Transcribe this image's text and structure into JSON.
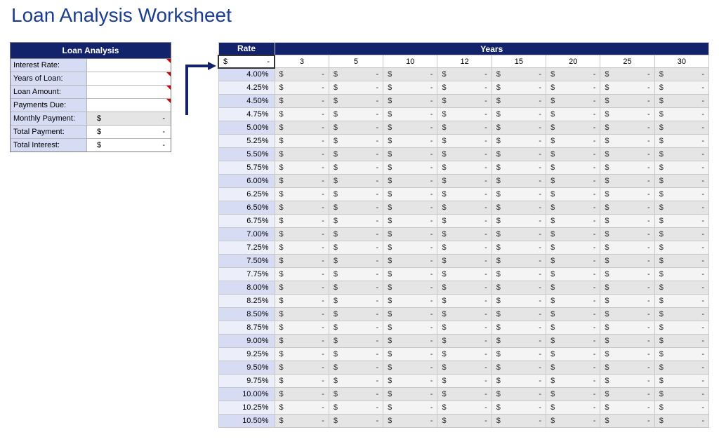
{
  "title": "Loan Analysis Worksheet",
  "colors": {
    "header_bg": "#13236b",
    "header_text": "#ffffff",
    "rate_col_bg_even": "#d7dcf5",
    "rate_col_bg_odd": "#eceef9",
    "value_bg_even": "#e5e5e5",
    "value_bg_odd": "#f4f4f4",
    "title_color": "#1b3d8f",
    "border": "#c7c7c7",
    "comment_marker": "#d40000"
  },
  "summary": {
    "header": "Loan Analysis",
    "rows": [
      {
        "label": "Interest Rate:",
        "value": "",
        "input": true,
        "marker": true
      },
      {
        "label": "Years of Loan:",
        "value": "",
        "input": true,
        "marker": true
      },
      {
        "label": "Loan Amount:",
        "value": "",
        "input": true,
        "marker": true
      },
      {
        "label": "Payments Due:",
        "value": "",
        "input": true,
        "marker": true
      },
      {
        "label": "Monthly Payment:",
        "currency": "$",
        "dash": "-",
        "highlight": true
      },
      {
        "label": "Total Payment:",
        "currency": "$",
        "dash": "-"
      },
      {
        "label": "Total Interest:",
        "currency": "$",
        "dash": "-"
      }
    ]
  },
  "table": {
    "rate_header": "Rate",
    "years_header": "Years",
    "sub_currency": "$",
    "sub_dash": "-",
    "years": [
      3,
      5,
      10,
      12,
      15,
      20,
      25,
      30
    ],
    "rates": [
      "4.00%",
      "4.25%",
      "4.50%",
      "4.75%",
      "5.00%",
      "5.25%",
      "5.50%",
      "5.75%",
      "6.00%",
      "6.25%",
      "6.50%",
      "6.75%",
      "7.00%",
      "7.25%",
      "7.50%",
      "7.75%",
      "8.00%",
      "8.25%",
      "8.50%",
      "8.75%",
      "9.00%",
      "9.25%",
      "9.50%",
      "9.75%",
      "10.00%",
      "10.25%",
      "10.50%"
    ],
    "cell_currency": "$",
    "cell_dash": "-"
  }
}
